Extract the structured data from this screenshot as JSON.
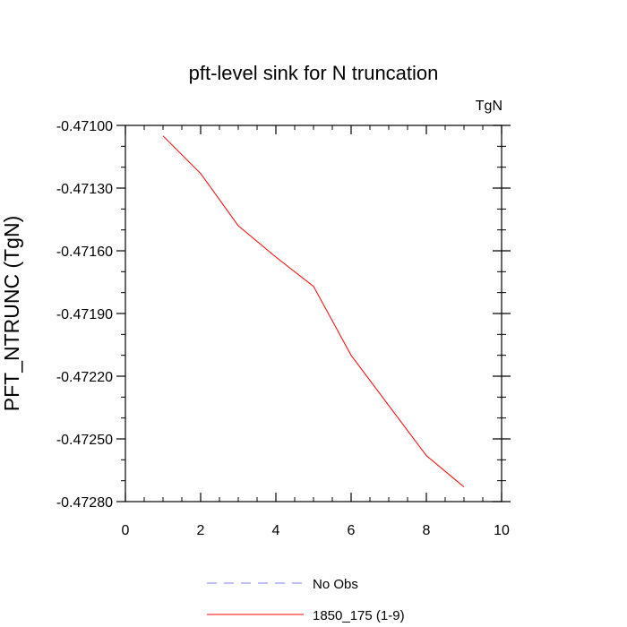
{
  "chart_data": {
    "type": "line",
    "title": "pft-level sink for N truncation",
    "units": "TgN",
    "xlabel": "",
    "ylabel": "PFT_NTRUNC  (TgN)",
    "xlim": [
      0,
      10
    ],
    "ylim": [
      -0.4728,
      -0.471
    ],
    "x_ticks": [
      0,
      2,
      4,
      6,
      8,
      10
    ],
    "x_tick_labels": [
      "0",
      "2",
      "4",
      "6",
      "8",
      "10"
    ],
    "y_ticks": [
      -0.471,
      -0.4713,
      -0.4716,
      -0.4719,
      -0.4722,
      -0.4725,
      -0.4728
    ],
    "y_tick_labels": [
      "-0.47100",
      "-0.47130",
      "-0.47160",
      "-0.47190",
      "-0.47220",
      "-0.47250",
      "-0.47280"
    ],
    "grid": false,
    "legend_position": "bottom-center",
    "series": [
      {
        "name": "No Obs",
        "color": "#7f7fff",
        "dash": "dashed",
        "x": [],
        "y": []
      },
      {
        "name": "1850_175 (1-9)",
        "color": "#ff0000",
        "dash": "solid",
        "x": [
          1,
          2,
          3,
          4,
          5,
          6,
          7,
          8,
          9
        ],
        "y": [
          -0.47105,
          -0.47123,
          -0.47148,
          -0.47163,
          -0.47177,
          -0.4721,
          -0.47234,
          -0.47258,
          -0.47273
        ]
      }
    ]
  }
}
